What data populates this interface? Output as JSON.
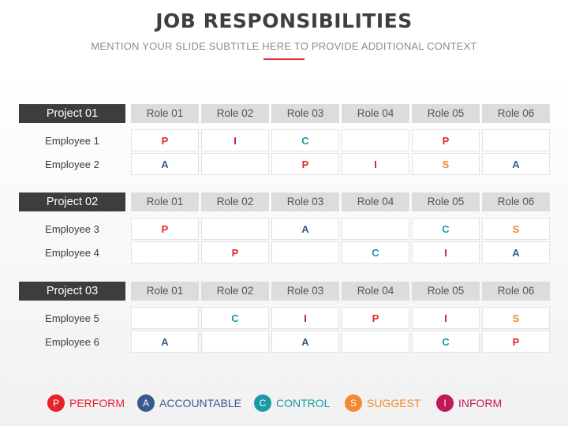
{
  "header": {
    "title": "JOB RESPONSIBILITIES",
    "subtitle": "MENTION YOUR SLIDE SUBTITLE HERE TO PROVIDE ADDITIONAL CONTEXT"
  },
  "codes": {
    "P": {
      "letter": "P",
      "color": "#e8222d"
    },
    "A": {
      "letter": "A",
      "color": "#3a5a8c"
    },
    "C": {
      "letter": "C",
      "color": "#1a9aa6"
    },
    "S": {
      "letter": "S",
      "color": "#f28a2e"
    },
    "I": {
      "letter": "I",
      "color": "#c2185b"
    }
  },
  "projects": [
    {
      "name": "Project 01",
      "roles": [
        "Role 01",
        "Role 02",
        "Role 03",
        "Role 04",
        "Role 05",
        "Role 06"
      ],
      "employees": [
        {
          "name": "Employee 1",
          "cells": [
            "P",
            "I",
            "C",
            "",
            "P",
            ""
          ]
        },
        {
          "name": "Employee 2",
          "cells": [
            "A",
            "",
            "P",
            "I",
            "S",
            "A"
          ]
        }
      ]
    },
    {
      "name": "Project 02",
      "roles": [
        "Role 01",
        "Role 02",
        "Role 03",
        "Role 04",
        "Role 05",
        "Role 06"
      ],
      "employees": [
        {
          "name": "Employee 3",
          "cells": [
            "P",
            "",
            "A",
            "",
            "C",
            "S"
          ]
        },
        {
          "name": "Employee 4",
          "cells": [
            "",
            "P",
            "",
            "C",
            "I",
            "A"
          ]
        }
      ]
    },
    {
      "name": "Project 03",
      "roles": [
        "Role 01",
        "Role 02",
        "Role 03",
        "Role 04",
        "Role 05",
        "Role 06"
      ],
      "employees": [
        {
          "name": "Employee 5",
          "cells": [
            "",
            "C",
            "I",
            "P",
            "I",
            "S"
          ]
        },
        {
          "name": "Employee 6",
          "cells": [
            "A",
            "",
            "A",
            "",
            "C",
            "P"
          ]
        }
      ]
    }
  ],
  "legend": [
    {
      "code": "P",
      "label": "PERFORM"
    },
    {
      "code": "A",
      "label": "ACCOUNTABLE"
    },
    {
      "code": "C",
      "label": "CONTROL"
    },
    {
      "code": "S",
      "label": "SUGGEST"
    },
    {
      "code": "I",
      "label": "INFORM"
    }
  ]
}
